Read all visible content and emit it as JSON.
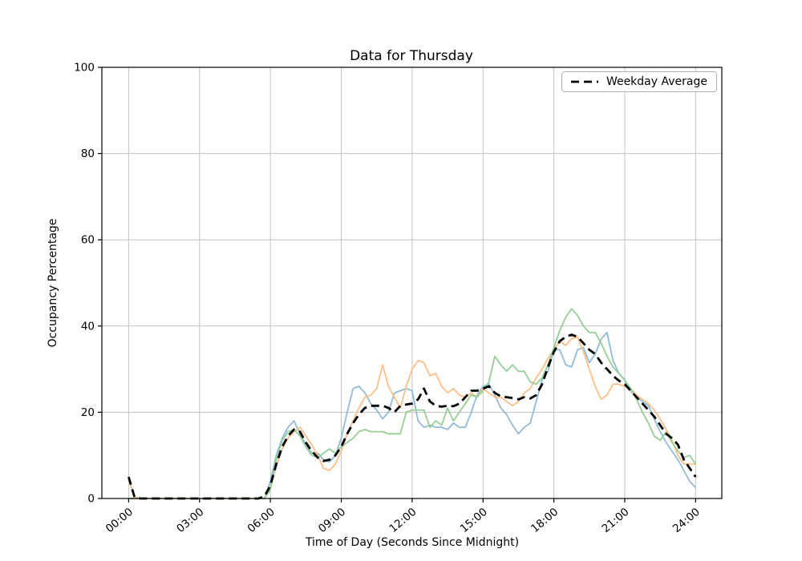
{
  "figure": {
    "background_color": "#ffffff"
  },
  "chart_data": {
    "type": "line",
    "title": "Data for Thursday",
    "xlabel": "Time of Day (Seconds Since Midnight)",
    "ylabel": "Occupancy Percentage",
    "grid": true,
    "grid_color": "#c3c3c3",
    "ylim": [
      0,
      100
    ],
    "xlim_hours": [
      -1.13,
      25.13
    ],
    "y_ticks": [
      0,
      20,
      40,
      60,
      80,
      100
    ],
    "x_ticks_hours": [
      0,
      3,
      6,
      9,
      12,
      15,
      18,
      21,
      24
    ],
    "x_tick_labels": [
      "00:00",
      "03:00",
      "06:00",
      "09:00",
      "12:00",
      "15:00",
      "18:00",
      "21:00",
      "24:00"
    ],
    "legend": {
      "position": "upper right",
      "entries": [
        "Weekday Average"
      ]
    },
    "x_hours": [
      0,
      0.25,
      0.5,
      0.75,
      1,
      1.25,
      1.5,
      1.75,
      2,
      2.25,
      2.5,
      2.75,
      3,
      3.25,
      3.5,
      3.75,
      4,
      4.25,
      4.5,
      4.75,
      5,
      5.25,
      5.5,
      5.75,
      6,
      6.25,
      6.5,
      6.75,
      7,
      7.25,
      7.5,
      7.75,
      8,
      8.25,
      8.5,
      8.75,
      9,
      9.25,
      9.5,
      9.75,
      10,
      10.25,
      10.5,
      10.75,
      11,
      11.25,
      11.5,
      11.75,
      12,
      12.25,
      12.5,
      12.75,
      13,
      13.25,
      13.5,
      13.75,
      14,
      14.25,
      14.5,
      14.75,
      15,
      15.25,
      15.5,
      15.75,
      16,
      16.25,
      16.5,
      16.75,
      17,
      17.25,
      17.5,
      17.75,
      18,
      18.25,
      18.5,
      18.75,
      19,
      19.25,
      19.5,
      19.75,
      20,
      20.25,
      20.5,
      20.75,
      21,
      21.25,
      21.5,
      21.75,
      22,
      22.25,
      22.5,
      22.75,
      23,
      23.25,
      23.5,
      23.75,
      24
    ],
    "series": [
      {
        "id": "day-series-1",
        "color": "#8fbbd9",
        "style": "solid",
        "width": 1.8,
        "in_legend": false,
        "values": [
          0,
          0,
          0,
          0,
          0,
          0,
          0,
          0,
          0,
          0,
          0,
          0,
          0,
          0,
          0,
          0,
          0,
          0,
          0,
          0,
          0,
          0,
          0,
          0,
          4,
          10,
          14,
          16.5,
          18,
          15,
          12.5,
          10.5,
          10.5,
          9,
          8.5,
          10,
          14,
          20,
          25.5,
          26,
          24.5,
          22,
          20.5,
          18.5,
          20,
          24.5,
          25,
          25.5,
          25,
          18,
          16.5,
          17,
          16.5,
          16.5,
          16,
          17.5,
          16.5,
          16.5,
          20,
          24,
          26,
          26.5,
          24,
          21,
          19.5,
          17,
          15,
          16.5,
          17.5,
          22.5,
          27.5,
          29.5,
          34.5,
          34.5,
          31,
          30.5,
          34.5,
          35,
          31.5,
          33.5,
          37,
          38.5,
          32,
          29,
          27.5,
          25,
          23.5,
          22.5,
          21.5,
          18.5,
          15.5,
          13,
          11,
          9,
          6.5,
          4,
          2.5
        ]
      },
      {
        "id": "day-series-2",
        "color": "#ffbe86",
        "style": "solid",
        "width": 1.8,
        "in_legend": false,
        "values": [
          4.5,
          0.3,
          0,
          0,
          0,
          0,
          0,
          0,
          0,
          0,
          0,
          0,
          0,
          0,
          0,
          0,
          0,
          0,
          0,
          0,
          0,
          0,
          0,
          0,
          2.5,
          7.5,
          11.5,
          14,
          15.5,
          16.5,
          14.5,
          12.5,
          10,
          7,
          6.5,
          8,
          11,
          15,
          18,
          21,
          23.5,
          24,
          25.5,
          31,
          26,
          23.5,
          21,
          26,
          30,
          32,
          31.5,
          28.5,
          29,
          26,
          24.5,
          25.5,
          24,
          23.5,
          24.5,
          23.5,
          25.5,
          24.5,
          23.5,
          23.5,
          22.5,
          21.5,
          22.5,
          24.5,
          25.5,
          28,
          30,
          32.5,
          34.5,
          36.5,
          35.5,
          37,
          37.5,
          34,
          30,
          26,
          23,
          24,
          26.5,
          26.5,
          26,
          25.5,
          24,
          23,
          22,
          20.5,
          18.5,
          16,
          13.5,
          10,
          8,
          8,
          8
        ]
      },
      {
        "id": "day-series-3",
        "color": "#95cf95",
        "style": "solid",
        "width": 1.8,
        "in_legend": false,
        "values": [
          0,
          0,
          0,
          0,
          0,
          0,
          0,
          0,
          0,
          0,
          0,
          0,
          0,
          0,
          0,
          0,
          0,
          0,
          0,
          0,
          0,
          0,
          0,
          0,
          2,
          9,
          13.5,
          15.5,
          16,
          14.5,
          12,
          10,
          9.5,
          10.5,
          11.5,
          10.5,
          12,
          13,
          14,
          15.5,
          16,
          15.5,
          15.5,
          15.5,
          15,
          15,
          15,
          20,
          20.5,
          20.5,
          20.5,
          16.5,
          18,
          17,
          21,
          18,
          20,
          22,
          24,
          23.5,
          25,
          27,
          33,
          31,
          29.5,
          31,
          29.5,
          29.5,
          27,
          26.5,
          28,
          31,
          35,
          39,
          42,
          44,
          42.5,
          40,
          38.5,
          38.5,
          36,
          33,
          30.5,
          29,
          27.5,
          25.5,
          23,
          20,
          17.5,
          14.5,
          13.5,
          15.5,
          13,
          11,
          9.5,
          10,
          8
        ]
      },
      {
        "id": "weekday-average",
        "label": "Weekday Average",
        "color": "#000000",
        "style": "dashed",
        "width": 2.8,
        "in_legend": true,
        "values": [
          5,
          0.3,
          0,
          0,
          0,
          0,
          0,
          0,
          0,
          0,
          0,
          0,
          0,
          0,
          0,
          0,
          0,
          0,
          0,
          0,
          0,
          0,
          0,
          0.5,
          3,
          8,
          12,
          14.5,
          16,
          15.5,
          13,
          11,
          9.5,
          8.7,
          9,
          10,
          12,
          15,
          17.5,
          19.5,
          21,
          21.5,
          21.5,
          21.5,
          21,
          20,
          21.5,
          21.8,
          22,
          23,
          25.5,
          22.5,
          21.5,
          21.3,
          21.5,
          21.4,
          22,
          23.5,
          25,
          25,
          25.5,
          26,
          24.5,
          23.7,
          23.5,
          23.3,
          23,
          23.5,
          23.2,
          24,
          26.5,
          30.5,
          34,
          36.5,
          37.5,
          38,
          37.5,
          36,
          34.5,
          33.5,
          31.5,
          30,
          28.5,
          27.3,
          26.5,
          25,
          23.5,
          22,
          20.5,
          19,
          17,
          15,
          14,
          12.5,
          9,
          7,
          5
        ]
      }
    ]
  }
}
